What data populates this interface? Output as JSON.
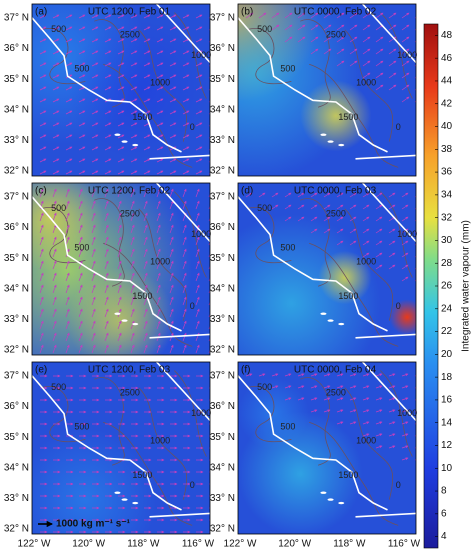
{
  "panels": [
    {
      "letter": "(a)",
      "title": "UTC 1200, Feb 01",
      "contour_labels": [
        "500",
        "500",
        "2500",
        "1000",
        "1000",
        "1500",
        "0"
      ]
    },
    {
      "letter": "(b)",
      "title": "UTC 0000, Feb 02",
      "contour_labels": [
        "500",
        "500",
        "2500",
        "1000",
        "1000",
        "1500",
        "0"
      ]
    },
    {
      "letter": "(c)",
      "title": "UTC 1200, Feb 02",
      "contour_labels": [
        "500",
        "500",
        "2500",
        "1000",
        "1000",
        "1500",
        "0"
      ]
    },
    {
      "letter": "(d)",
      "title": "UTC 0000, Feb 03",
      "contour_labels": [
        "500",
        "500",
        "2500",
        "1000",
        "1000",
        "1500",
        "0"
      ]
    },
    {
      "letter": "(e)",
      "title": "UTC 1200, Feb 03",
      "contour_labels": [
        "500",
        "500",
        "2500",
        "1000",
        "1000",
        "1500",
        "0"
      ]
    },
    {
      "letter": "(f)",
      "title": "UTC 0000, Feb 04",
      "contour_labels": [
        "500",
        "500",
        "2500",
        "1000",
        "1000",
        "1500",
        "0"
      ]
    }
  ],
  "lat_labels": [
    "37° N",
    "36° N",
    "35° N",
    "34° N",
    "33° N",
    "32° N"
  ],
  "lon_labels": [
    "122° W",
    "120° W",
    "118° W",
    "116° W"
  ],
  "scale_label": "1000 kg m⁻¹ s⁻¹",
  "colorbar": {
    "label": "Integrated water vapour (mm)",
    "lim": [
      3,
      49
    ],
    "ticks": [
      4,
      6,
      8,
      10,
      12,
      14,
      16,
      18,
      20,
      22,
      24,
      26,
      28,
      30,
      32,
      34,
      36,
      38,
      40,
      42,
      44,
      46,
      48
    ]
  }
}
